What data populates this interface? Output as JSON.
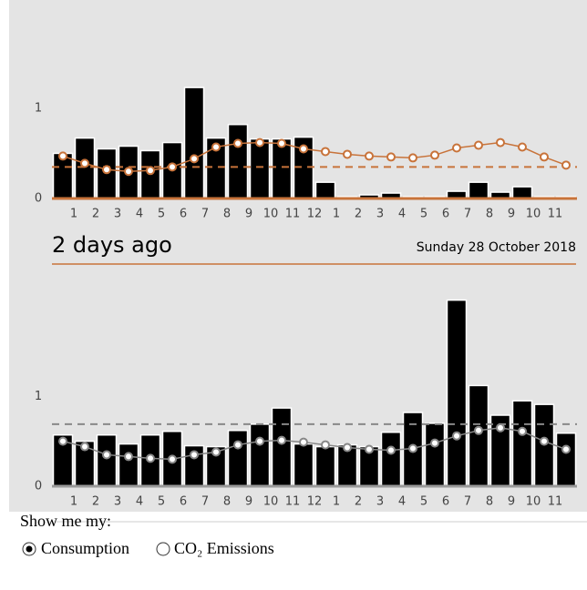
{
  "chart_data": [
    {
      "type": "bar",
      "categories": [
        "1",
        "2",
        "3",
        "4",
        "5",
        "6",
        "7",
        "8",
        "9",
        "10",
        "11",
        "12",
        "1",
        "2",
        "3",
        "4",
        "5",
        "6",
        "7",
        "8",
        "9",
        "10",
        "11",
        null
      ],
      "series": [
        {
          "type": "bar",
          "color": "#000000",
          "values": [
            0.5,
            0.67,
            0.55,
            0.58,
            0.53,
            0.62,
            1.23,
            0.67,
            0.82,
            0.66,
            0.66,
            0.68,
            0.18,
            0.02,
            0.04,
            0.06,
            0.02,
            0.02,
            0.08,
            0.18,
            0.07,
            0.13,
            0.02,
            0.02
          ]
        },
        {
          "type": "line",
          "color": "#c8733a",
          "values": [
            0.47,
            0.39,
            0.32,
            0.3,
            0.31,
            0.35,
            0.44,
            0.57,
            0.61,
            0.62,
            0.61,
            0.55,
            0.52,
            0.49,
            0.47,
            0.46,
            0.45,
            0.48,
            0.56,
            0.59,
            0.62,
            0.57,
            0.46,
            0.37
          ]
        }
      ],
      "reference_line": 0.35,
      "reference_color": "#c8733a",
      "axis_color": "#c8733a",
      "ylim": [
        0,
        2.2
      ],
      "yticks": [
        0,
        1
      ]
    },
    {
      "type": "bar",
      "title": "2 days ago",
      "subtitle": "Sunday 28 October 2018",
      "categories": [
        "1",
        "2",
        "3",
        "4",
        "5",
        "6",
        "7",
        "8",
        "9",
        "10",
        "11",
        "12",
        "1",
        "2",
        "3",
        "4",
        "5",
        "6",
        "7",
        "8",
        "9",
        "10",
        "11",
        null
      ],
      "series": [
        {
          "type": "bar",
          "color": "#000000",
          "values": [
            0.57,
            0.5,
            0.57,
            0.47,
            0.57,
            0.61,
            0.45,
            0.44,
            0.62,
            0.69,
            0.87,
            0.47,
            0.44,
            0.46,
            0.44,
            0.6,
            0.82,
            0.7,
            2.07,
            1.12,
            0.79,
            0.95,
            0.91,
            0.59
          ]
        },
        {
          "type": "line",
          "color": "#888888",
          "values": [
            0.5,
            0.44,
            0.35,
            0.33,
            0.31,
            0.3,
            0.35,
            0.38,
            0.46,
            0.5,
            0.51,
            0.49,
            0.46,
            0.43,
            0.41,
            0.4,
            0.42,
            0.48,
            0.56,
            0.62,
            0.65,
            0.61,
            0.5,
            0.41
          ]
        }
      ],
      "reference_line": 0.69,
      "reference_color": "#888888",
      "axis_color": "#999999",
      "ylim": [
        0,
        2.35
      ],
      "yticks": [
        0,
        1
      ]
    }
  ],
  "form": {
    "legend": "Show me my:",
    "options": [
      "Consumption",
      "CO₂ Emissions"
    ],
    "selected": 0
  }
}
